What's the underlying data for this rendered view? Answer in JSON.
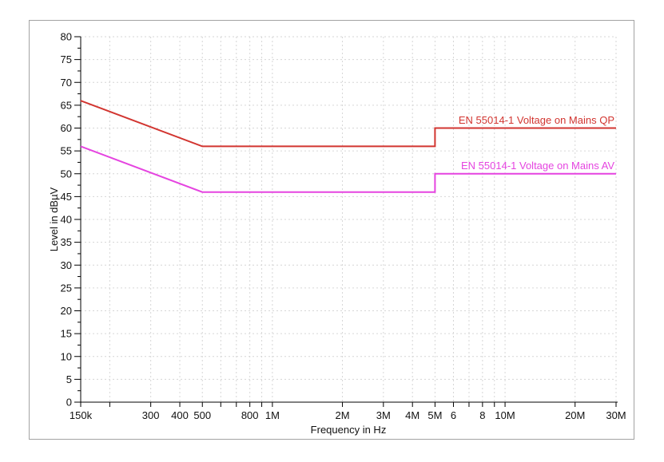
{
  "panel": {
    "border_color": "#a3a3a3",
    "background": "#ffffff"
  },
  "chart_data": {
    "type": "line",
    "title": "",
    "xlabel": "Frequency in Hz",
    "ylabel": "Level in dBµV",
    "x_scale": "log",
    "x_range_hz": [
      150000,
      30000000
    ],
    "ylim": [
      0,
      80
    ],
    "y_tick_step": 5,
    "y_minor_tick_step": 2.5,
    "grid": true,
    "grid_color": "#d6d6d6",
    "axis_color": "#000000",
    "tick_label_color": "#111111",
    "y_tick_labels": [
      "0",
      "5",
      "10",
      "15",
      "20",
      "25",
      "30",
      "35",
      "40",
      "45",
      "50",
      "55",
      "60",
      "65",
      "70",
      "75",
      "80"
    ],
    "x_major_ticks": [
      {
        "hz": 150000,
        "label": "150k"
      },
      {
        "hz": 300000,
        "label": "300"
      },
      {
        "hz": 400000,
        "label": "400"
      },
      {
        "hz": 500000,
        "label": "500"
      },
      {
        "hz": 800000,
        "label": "800"
      },
      {
        "hz": 1000000,
        "label": "1M"
      },
      {
        "hz": 2000000,
        "label": "2M"
      },
      {
        "hz": 3000000,
        "label": "3M"
      },
      {
        "hz": 4000000,
        "label": "4M"
      },
      {
        "hz": 5000000,
        "label": "5M"
      },
      {
        "hz": 6000000,
        "label": "6"
      },
      {
        "hz": 8000000,
        "label": "8"
      },
      {
        "hz": 10000000,
        "label": "10M"
      },
      {
        "hz": 20000000,
        "label": "20M"
      },
      {
        "hz": 30000000,
        "label": "30M"
      }
    ],
    "x_grid_hz": [
      200000,
      300000,
      400000,
      500000,
      600000,
      700000,
      800000,
      900000,
      1000000,
      2000000,
      3000000,
      4000000,
      5000000,
      6000000,
      7000000,
      8000000,
      9000000,
      10000000,
      20000000,
      30000000
    ],
    "series": [
      {
        "name": "EN 55014-1 Voltage on Mains QP",
        "color": "#d23530",
        "points_hz_dbuv": [
          [
            150000,
            66
          ],
          [
            500000,
            56
          ],
          [
            5000000,
            56
          ],
          [
            5000000,
            60
          ],
          [
            30000000,
            60
          ]
        ]
      },
      {
        "name": "EN 55014-1 Voltage on Mains AV",
        "color": "#e544e0",
        "points_hz_dbuv": [
          [
            150000,
            56
          ],
          [
            500000,
            46
          ],
          [
            5000000,
            46
          ],
          [
            5000000,
            50
          ],
          [
            30000000,
            50
          ]
        ]
      }
    ],
    "legend_position": "labels-right-above-lines"
  }
}
